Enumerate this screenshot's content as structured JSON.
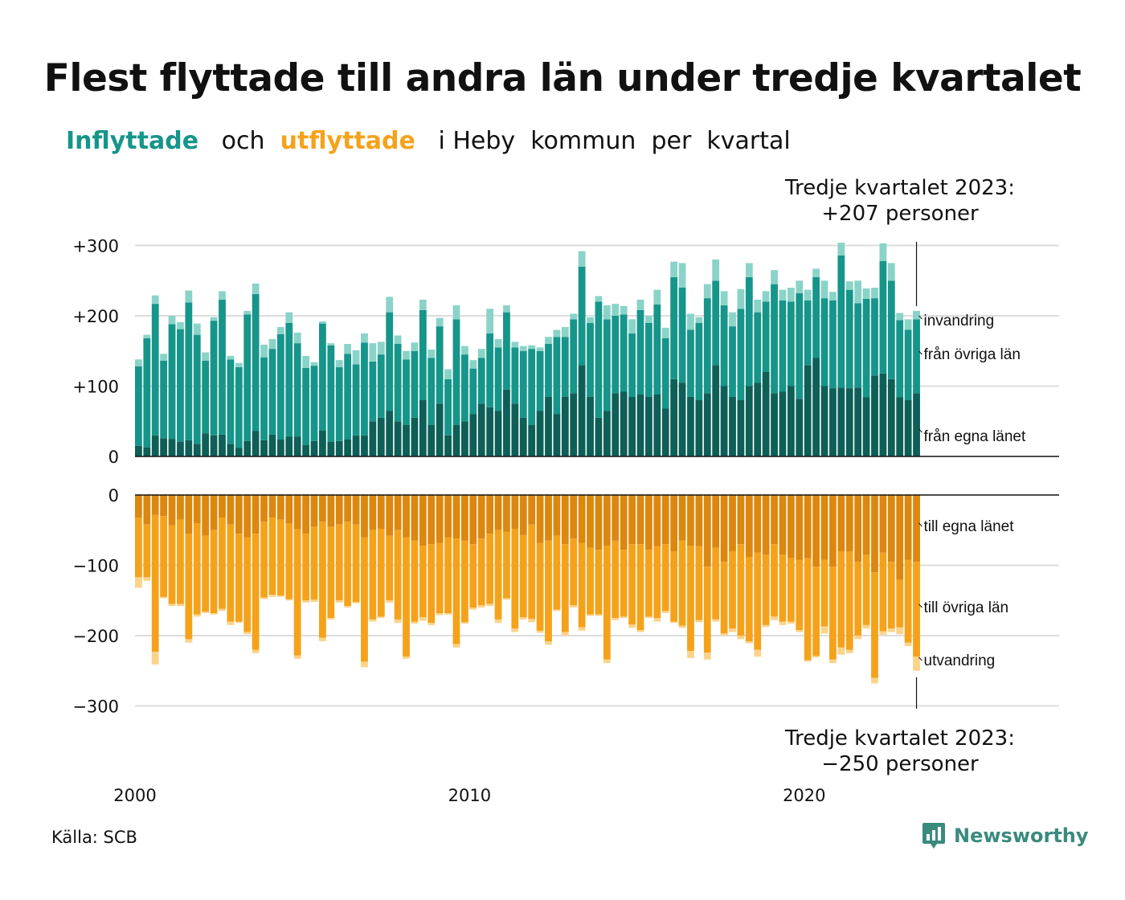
{
  "title": "Flest flyttade till andra län under tredje kvartalet",
  "subtitle": {
    "in_word": "Inflyttade",
    "and_word": "och",
    "out_word": "utflyttade",
    "rest": "i Heby  kommun  per  kvartal"
  },
  "annotations": {
    "top_line1": "Tredje kvartalet 2023:",
    "top_line2": "+207 personer",
    "bottom_line1": "Tredje kvartalet 2023:",
    "bottom_line2": "−250 personer"
  },
  "source": "Källa: SCB",
  "brand": "Newsworthy",
  "colors": {
    "in_dark": "#0d5f57",
    "in_mid": "#16958a",
    "in_light": "#8ad3c8",
    "out_dark": "#dc870e",
    "out_mid": "#f5a21b",
    "out_light": "#fbd38b",
    "grid": "#dddddd",
    "baseline": "#111111"
  },
  "chart_data": [
    {
      "type": "bar",
      "stacked": true,
      "panel": "inflyttade",
      "x_start": "2000 Q1",
      "x_end": "2023 Q3",
      "x_ticks": [
        2000,
        2010,
        2020
      ],
      "x_tick_labels": [
        "2000",
        "2010",
        "2020"
      ],
      "ylim": [
        0,
        300
      ],
      "y_ticks": [
        0,
        100,
        200,
        300
      ],
      "y_tick_labels": [
        "0",
        "+100",
        "+200",
        "+300"
      ],
      "grid": true,
      "series": [
        {
          "name": "från egna länet",
          "values": [
            15,
            13,
            30,
            26,
            25,
            21,
            23,
            18,
            33,
            30,
            31,
            18,
            12,
            22,
            36,
            23,
            31,
            24,
            28,
            28,
            16,
            22,
            37,
            21,
            22,
            24,
            30,
            30,
            50,
            55,
            65,
            50,
            45,
            55,
            80,
            45,
            75,
            30,
            45,
            50,
            60,
            75,
            70,
            65,
            95,
            75,
            55,
            45,
            65,
            85,
            60,
            85,
            90,
            130,
            85,
            55,
            65,
            90,
            92,
            85,
            88,
            85,
            88,
            68,
            110,
            105,
            85,
            80,
            90,
            130,
            100,
            85,
            80,
            100,
            105,
            120,
            90,
            92,
            100,
            82,
            130,
            140,
            100,
            97,
            98,
            97,
            98,
            84,
            115,
            118,
            110,
            84,
            80,
            90
          ]
        },
        {
          "name": "från övriga län",
          "values": [
            113,
            155,
            187,
            110,
            163,
            160,
            196,
            155,
            103,
            163,
            192,
            120,
            115,
            180,
            195,
            118,
            122,
            150,
            162,
            133,
            110,
            107,
            152,
            137,
            105,
            122,
            101,
            132,
            85,
            90,
            140,
            110,
            93,
            95,
            128,
            95,
            110,
            80,
            150,
            95,
            65,
            65,
            105,
            90,
            110,
            80,
            95,
            108,
            85,
            75,
            110,
            85,
            105,
            140,
            105,
            165,
            130,
            110,
            110,
            90,
            120,
            105,
            128,
            100,
            145,
            135,
            95,
            110,
            135,
            120,
            115,
            100,
            130,
            155,
            100,
            100,
            155,
            130,
            120,
            150,
            92,
            115,
            125,
            125,
            188,
            140,
            120,
            140,
            110,
            160,
            140,
            110,
            100,
            105
          ]
        },
        {
          "name": "invandring",
          "values": [
            10,
            5,
            12,
            10,
            12,
            10,
            17,
            16,
            12,
            5,
            12,
            5,
            6,
            5,
            15,
            18,
            14,
            10,
            15,
            15,
            17,
            5,
            3,
            3,
            10,
            14,
            20,
            13,
            26,
            18,
            22,
            12,
            12,
            12,
            15,
            12,
            12,
            14,
            20,
            12,
            12,
            13,
            35,
            12,
            10,
            8,
            7,
            5,
            5,
            10,
            10,
            14,
            8,
            22,
            8,
            8,
            20,
            17,
            12,
            20,
            15,
            10,
            21,
            15,
            22,
            35,
            23,
            8,
            20,
            30,
            20,
            20,
            28,
            20,
            18,
            15,
            20,
            15,
            20,
            18,
            15,
            12,
            25,
            12,
            18,
            12,
            32,
            15,
            15,
            25,
            25,
            10,
            15,
            12
          ]
        }
      ]
    },
    {
      "type": "bar",
      "stacked": true,
      "panel": "utflyttade",
      "x_start": "2000 Q1",
      "x_end": "2023 Q3",
      "x_ticks": [
        2000,
        2010,
        2020
      ],
      "x_tick_labels": [
        "2000",
        "2010",
        "2020"
      ],
      "ylim": [
        -300,
        0
      ],
      "y_ticks": [
        0,
        -100,
        -200,
        -300
      ],
      "y_tick_labels": [
        "0",
        "−100",
        "−200",
        "−300"
      ],
      "grid": true,
      "series": [
        {
          "name": "till egna länet",
          "values": [
            -32,
            -42,
            -28,
            -30,
            -43,
            -35,
            -55,
            -40,
            -58,
            -50,
            -32,
            -42,
            -55,
            -60,
            -55,
            -38,
            -32,
            -35,
            -40,
            -48,
            -55,
            -45,
            -38,
            -45,
            -42,
            -38,
            -42,
            -60,
            -50,
            -48,
            -58,
            -50,
            -60,
            -65,
            -72,
            -70,
            -68,
            -60,
            -62,
            -65,
            -70,
            -62,
            -55,
            -50,
            -52,
            -48,
            -57,
            -42,
            -68,
            -65,
            -58,
            -70,
            -62,
            -68,
            -75,
            -78,
            -72,
            -65,
            -78,
            -70,
            -70,
            -78,
            -73,
            -70,
            -80,
            -65,
            -72,
            -73,
            -102,
            -75,
            -95,
            -80,
            -70,
            -88,
            -82,
            -85,
            -70,
            -85,
            -90,
            -92,
            -90,
            -102,
            -92,
            -102,
            -80,
            -80,
            -95,
            -85,
            -110,
            -82,
            -95,
            -120,
            -92,
            -95
          ]
        },
        {
          "name": "till övriga län",
          "values": [
            -85,
            -75,
            -195,
            -115,
            -112,
            -120,
            -150,
            -130,
            -108,
            -118,
            -130,
            -138,
            -125,
            -135,
            -165,
            -108,
            -110,
            -108,
            -108,
            -180,
            -95,
            -104,
            -165,
            -130,
            -108,
            -120,
            -110,
            -177,
            -127,
            -125,
            -92,
            -127,
            -170,
            -115,
            -102,
            -112,
            -100,
            -108,
            -150,
            -116,
            -90,
            -95,
            -100,
            -127,
            -95,
            -142,
            -117,
            -134,
            -125,
            -143,
            -105,
            -125,
            -95,
            -120,
            -95,
            -92,
            -162,
            -110,
            -95,
            -114,
            -122,
            -95,
            -102,
            -95,
            -100,
            -121,
            -150,
            -105,
            -122,
            -102,
            -102,
            -110,
            -130,
            -120,
            -138,
            -100,
            -103,
            -95,
            -90,
            -100,
            -145,
            -127,
            -95,
            -132,
            -137,
            -140,
            -105,
            -100,
            -150,
            -112,
            -95,
            -68,
            -118,
            -135
          ]
        },
        {
          "name": "utvandring",
          "values": [
            -15,
            -5,
            -18,
            -2,
            -3,
            -3,
            -5,
            -3,
            -2,
            -2,
            -3,
            -5,
            -2,
            -3,
            -5,
            -2,
            -3,
            -2,
            -2,
            -5,
            -3,
            -3,
            -5,
            -2,
            -3,
            -2,
            -2,
            -8,
            -3,
            -2,
            -3,
            -5,
            -3,
            -3,
            -5,
            -3,
            -3,
            -2,
            -5,
            -2,
            -3,
            -3,
            -3,
            -5,
            -2,
            -5,
            -3,
            -5,
            -3,
            -5,
            -2,
            -5,
            -3,
            -5,
            -2,
            -2,
            -5,
            -3,
            -2,
            -5,
            -3,
            -2,
            -5,
            -3,
            -2,
            -3,
            -10,
            -3,
            -10,
            -3,
            -3,
            -5,
            -5,
            -3,
            -10,
            -3,
            -5,
            -5,
            -3,
            -3,
            -2,
            -2,
            -10,
            -5,
            -10,
            -5,
            -5,
            -5,
            -8,
            -5,
            -5,
            -10,
            -5,
            -20
          ]
        }
      ]
    }
  ],
  "segment_labels": {
    "in_top": "invandring",
    "in_mid": "från övriga län",
    "in_bottom": "från egna länet",
    "out_top": "till egna länet",
    "out_mid": "till övriga län",
    "out_bottom": "utvandring"
  }
}
